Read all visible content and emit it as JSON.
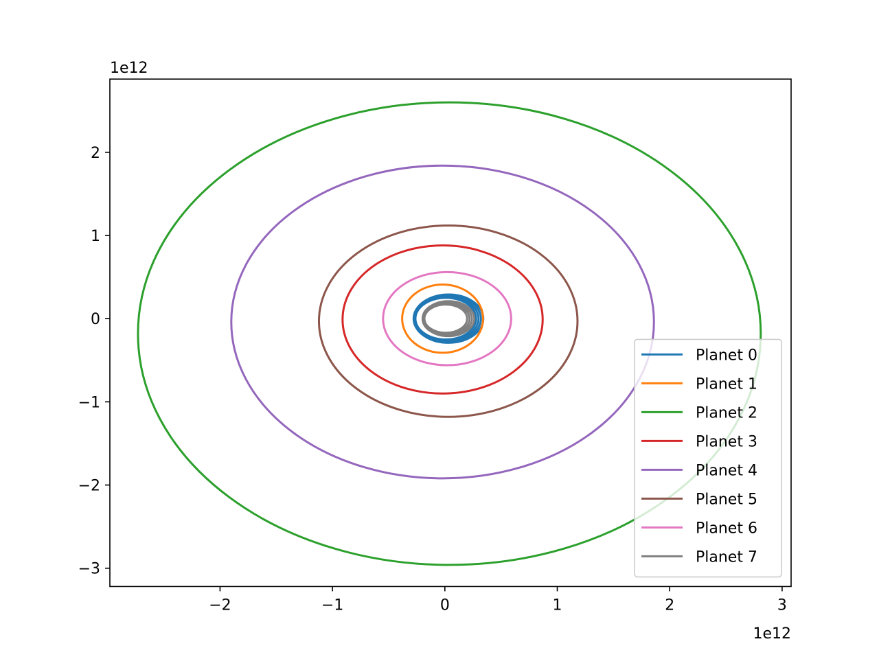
{
  "chart_data": {
    "type": "line",
    "title": "",
    "xlabel": "",
    "ylabel": "",
    "x_offset_label": "1e12",
    "y_offset_label": "1e12",
    "xlim": [
      -2.98,
      3.08
    ],
    "ylim": [
      -3.22,
      2.88
    ],
    "x_ticks": [
      {
        "value": -2,
        "label": "−2"
      },
      {
        "value": -1,
        "label": "−1"
      },
      {
        "value": 0,
        "label": "0"
      },
      {
        "value": 1,
        "label": "1"
      },
      {
        "value": 2,
        "label": "2"
      },
      {
        "value": 3,
        "label": "3"
      }
    ],
    "y_ticks": [
      {
        "value": -3,
        "label": "−3"
      },
      {
        "value": -2,
        "label": "−2"
      },
      {
        "value": -1,
        "label": "−1"
      },
      {
        "value": 0,
        "label": "0"
      },
      {
        "value": 1,
        "label": "1"
      },
      {
        "value": 2,
        "label": "2"
      }
    ],
    "grid": false,
    "legend_position": "lower-right",
    "series": [
      {
        "name": "Planet 0",
        "color": "#1f77b4",
        "orbit": {
          "cx": 0.02,
          "cy": 0.0,
          "rx": 0.29,
          "ry": 0.27,
          "band": 0.04
        }
      },
      {
        "name": "Planet 1",
        "color": "#ff7f0e",
        "orbit": {
          "cx": -0.02,
          "cy": 0.0,
          "rx": 0.36,
          "ry": 0.41
        }
      },
      {
        "name": "Planet 2",
        "color": "#2ca02c",
        "orbit": {
          "cx": 0.04,
          "cy": -0.18,
          "rx": 2.77,
          "ry": 2.78
        }
      },
      {
        "name": "Planet 3",
        "color": "#d62728",
        "orbit": {
          "cx": -0.02,
          "cy": -0.01,
          "rx": 0.89,
          "ry": 0.89
        }
      },
      {
        "name": "Planet 4",
        "color": "#9467bd",
        "orbit": {
          "cx": -0.02,
          "cy": -0.04,
          "rx": 1.88,
          "ry": 1.88
        }
      },
      {
        "name": "Planet 5",
        "color": "#8c564b",
        "orbit": {
          "cx": 0.03,
          "cy": -0.03,
          "rx": 1.15,
          "ry": 1.15
        }
      },
      {
        "name": "Planet 6",
        "color": "#e377c2",
        "orbit": {
          "cx": 0.02,
          "cy": 0.0,
          "rx": 0.57,
          "ry": 0.56
        }
      },
      {
        "name": "Planet 7",
        "color": "#7f7f7f",
        "orbit": {
          "cx": 0.02,
          "cy": 0.0,
          "rx": 0.21,
          "ry": 0.19,
          "band": 0.04
        }
      }
    ]
  }
}
